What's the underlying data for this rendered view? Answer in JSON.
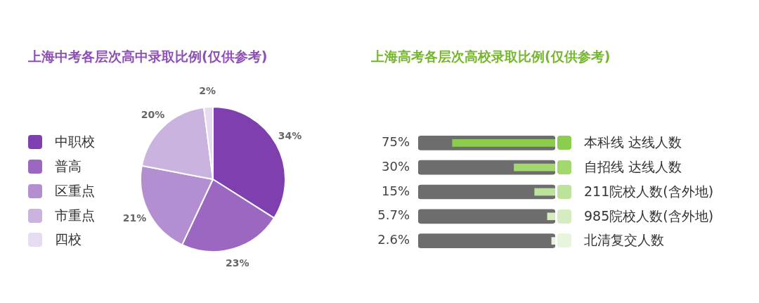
{
  "chart_data": [
    {
      "type": "pie",
      "title": "上海中考各层次高中录取比例(仅供参考)",
      "categories": [
        "中职校",
        "普高",
        "区重点",
        "市重点",
        "四校"
      ],
      "values": [
        34,
        23,
        21,
        20,
        2
      ],
      "colors": [
        "#7f3fae",
        "#9b67c1",
        "#b38fd1",
        "#cbb3e0",
        "#e6dbf0"
      ],
      "value_labels": [
        "34%",
        "23%",
        "21%",
        "20%",
        "2%"
      ],
      "legend": "left"
    },
    {
      "type": "bar",
      "title": "上海高考各层次高校录取比例(仅供参考)",
      "orientation": "horizontal",
      "categories": [
        "本科线 达线人数",
        "自招线 达线人数",
        "211院校人数(含外地)",
        "985院校人数(含外地)",
        "北清复交人数"
      ],
      "xlim": [
        100,
        0
      ],
      "tick_labels": false,
      "series": [
        {
          "color": "#6d6d6d",
          "values": [
            100,
            100,
            100,
            100,
            100
          ]
        },
        {
          "colors": [
            "#8ccc4e",
            "#a3d86e",
            "#bde39a",
            "#d4ecbf",
            "#e8f4dc"
          ],
          "values": [
            75,
            30,
            15,
            5.7,
            2.6
          ],
          "value_labels": [
            "75%",
            "30%",
            "15%",
            "5.7%",
            "2.6%"
          ]
        }
      ]
    }
  ]
}
